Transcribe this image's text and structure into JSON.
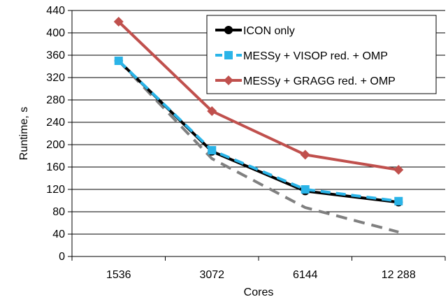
{
  "chart_data": {
    "type": "line",
    "xlabel": "Cores",
    "ylabel": "Runtime, s",
    "categories": [
      "1536",
      "3072",
      "6144",
      "12 288"
    ],
    "ylim": [
      0,
      440
    ],
    "yticks": [
      0,
      40,
      80,
      120,
      160,
      200,
      240,
      280,
      320,
      360,
      400,
      440
    ],
    "grid": "horizontal",
    "legend_position": "top-right",
    "series": [
      {
        "name": "ICON only",
        "values": [
          350,
          188,
          117,
          97
        ],
        "color": "#000000",
        "marker": "circle",
        "dash": "solid"
      },
      {
        "name": "MESSy + VISOP red. + OMP",
        "values": [
          350,
          190,
          120,
          99
        ],
        "color": "#2AB4E8",
        "marker": "square",
        "dash": "dashed"
      },
      {
        "name": "MESSy + GRAGG red. + OMP",
        "values": [
          420,
          260,
          182,
          155
        ],
        "color": "#C0504D",
        "marker": "diamond",
        "dash": "solid"
      },
      {
        "name": "",
        "values": [
          350,
          175,
          87.5,
          43.75
        ],
        "color": "#808080",
        "marker": "none",
        "dash": "dashed",
        "legend": false
      }
    ]
  }
}
